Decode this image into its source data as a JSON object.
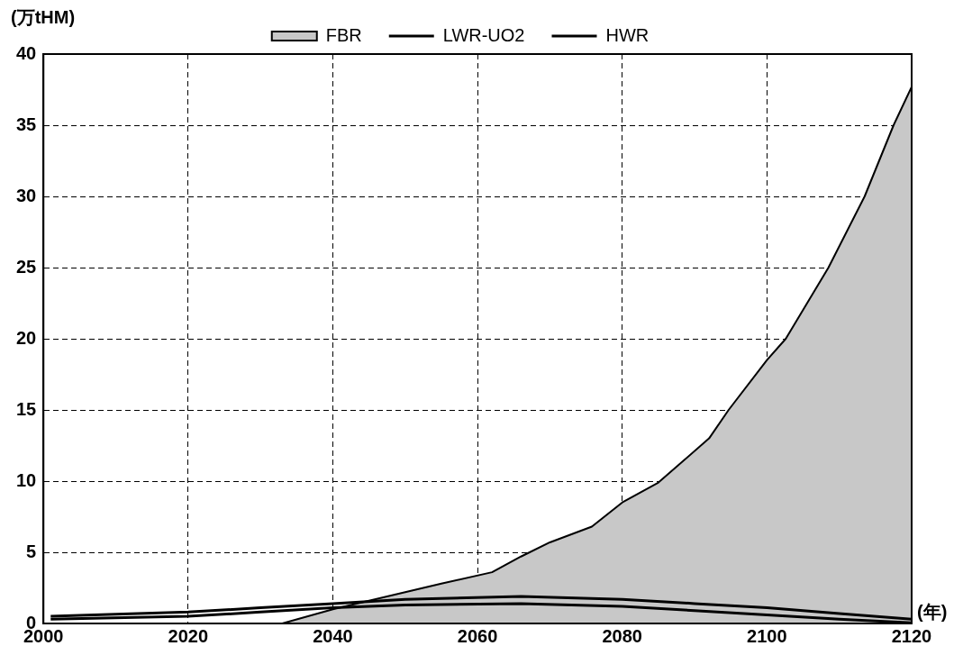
{
  "chart_data": {
    "type": "line",
    "ylabel": "(万tHM)",
    "xlabel": "(年)",
    "xlim": [
      2000,
      2120
    ],
    "xticks": [
      2000,
      2020,
      2040,
      2060,
      2080,
      2100,
      2120
    ],
    "ylim": [
      0,
      40
    ],
    "yticks": [
      0,
      5,
      10,
      15,
      20,
      25,
      30,
      35,
      40
    ],
    "grid": true,
    "legend": "top",
    "series": [
      {
        "name": "FBR",
        "type": "area",
        "color": "#c8c8c8",
        "x": [
          2000,
          2033,
          2040,
          2045,
          2050,
          2055,
          2062,
          2066,
          2070,
          2075.8,
          2080,
          2085,
          2092,
          2094.7,
          2100,
          2102.6,
          2108.5,
          2113.5,
          2117.5,
          2120
        ],
        "values": [
          0,
          0,
          1.0,
          1.6,
          2.2,
          2.8,
          3.6,
          4.7,
          5.7,
          6.8,
          8.5,
          9.9,
          13,
          15,
          18.5,
          20,
          25,
          30,
          35,
          37.7
        ]
      },
      {
        "name": "LWR-UO2",
        "color": "#000000",
        "x": [
          2001,
          2020,
          2030,
          2040,
          2050,
          2066,
          2080,
          2090,
          2100,
          2110,
          2120
        ],
        "values": [
          0.5,
          0.8,
          1.1,
          1.4,
          1.7,
          1.9,
          1.7,
          1.4,
          1.1,
          0.7,
          0.3
        ]
      },
      {
        "name": "HWR",
        "color": "#000000",
        "x": [
          2001,
          2020,
          2030,
          2040,
          2050,
          2066,
          2080,
          2090,
          2100,
          2110,
          2120
        ],
        "values": [
          0.3,
          0.5,
          0.8,
          1.1,
          1.3,
          1.4,
          1.2,
          0.9,
          0.6,
          0.3,
          0.05
        ]
      }
    ]
  }
}
